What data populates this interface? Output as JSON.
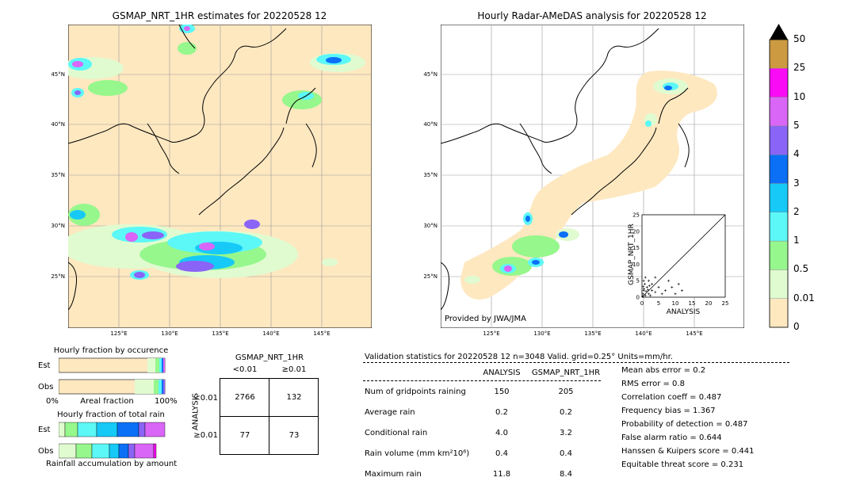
{
  "left_map": {
    "title": "GSMAP_NRT_1HR estimates for 20220528 12",
    "lat_labels": [
      "45°N",
      "40°N",
      "35°N",
      "30°N",
      "25°N"
    ],
    "lon_labels": [
      "125°E",
      "130°E",
      "135°E",
      "140°E",
      "145°E"
    ]
  },
  "right_map": {
    "title": "Hourly Radar-AMeDAS analysis for 20220528 12",
    "lat_labels": [
      "45°N",
      "40°N",
      "35°N",
      "30°N",
      "25°N"
    ],
    "lon_labels": [
      "125°E",
      "130°E",
      "135°E",
      "140°E",
      "145°E"
    ],
    "credit": "Provided by JWA/JMA"
  },
  "colorbar": {
    "levels": [
      "0",
      "0.01",
      "0.5",
      "1",
      "2",
      "3",
      "4",
      "5",
      "10",
      "25",
      "50"
    ],
    "colors": [
      "#fee8c0",
      "#e0fbd0",
      "#96f78c",
      "#5cf7f7",
      "#16c9f7",
      "#0b70f6",
      "#8a64f6",
      "#d966f6",
      "#fa0bf6",
      "#cc9a40"
    ]
  },
  "scatter": {
    "xlabel": "ANALYSIS",
    "ylabel": "GSMAP_NRT_1HR",
    "ticks": [
      "0",
      "5",
      "10",
      "15",
      "20",
      "25"
    ],
    "range": [
      0,
      25
    ]
  },
  "hourly_occurrence": {
    "title": "Hourly fraction by occurence",
    "row1": "Est",
    "row2": "Obs",
    "x_left": "0%",
    "x_mid": "Areal fraction",
    "x_right": "100%"
  },
  "hourly_total": {
    "title": "Hourly fraction of total rain",
    "row1": "Est",
    "row2": "Obs",
    "footer": "Rainfall accumulation by amount"
  },
  "contingency": {
    "title": "GSMAP_NRT_1HR",
    "col1": "<0.01",
    "col2": "≥0.01",
    "row_axis": "ANALYSIS",
    "row1": "<0.01",
    "row2": "≥0.01",
    "cells": [
      "2766",
      "132",
      "77",
      "73"
    ]
  },
  "validation": {
    "header": "Validation statistics for 20220528 12  n=3048 Valid. grid=0.25° Units=mm/hr.",
    "col_analysis": "ANALYSIS",
    "col_gsmap": "GSMAP_NRT_1HR",
    "rows": [
      {
        "label": "Num of gridpoints raining",
        "analysis": "150",
        "gsmap": "205"
      },
      {
        "label": "Average rain",
        "analysis": "0.2",
        "gsmap": "0.2"
      },
      {
        "label": "Conditional rain",
        "analysis": "4.0",
        "gsmap": "3.2"
      },
      {
        "label": "Rain volume (mm km²10⁶)",
        "analysis": "0.4",
        "gsmap": "0.4"
      },
      {
        "label": "Maximum rain",
        "analysis": "11.8",
        "gsmap": "8.4"
      }
    ],
    "scores": [
      "Mean abs error =    0.2",
      "RMS error =    0.8",
      "Correlation coeff =  0.487",
      "Frequency bias =  1.367",
      "Probability of detection =  0.487",
      "False alarm ratio =  0.644",
      "Hanssen & Kuipers score =  0.441",
      "Equitable threat score =  0.231"
    ]
  }
}
